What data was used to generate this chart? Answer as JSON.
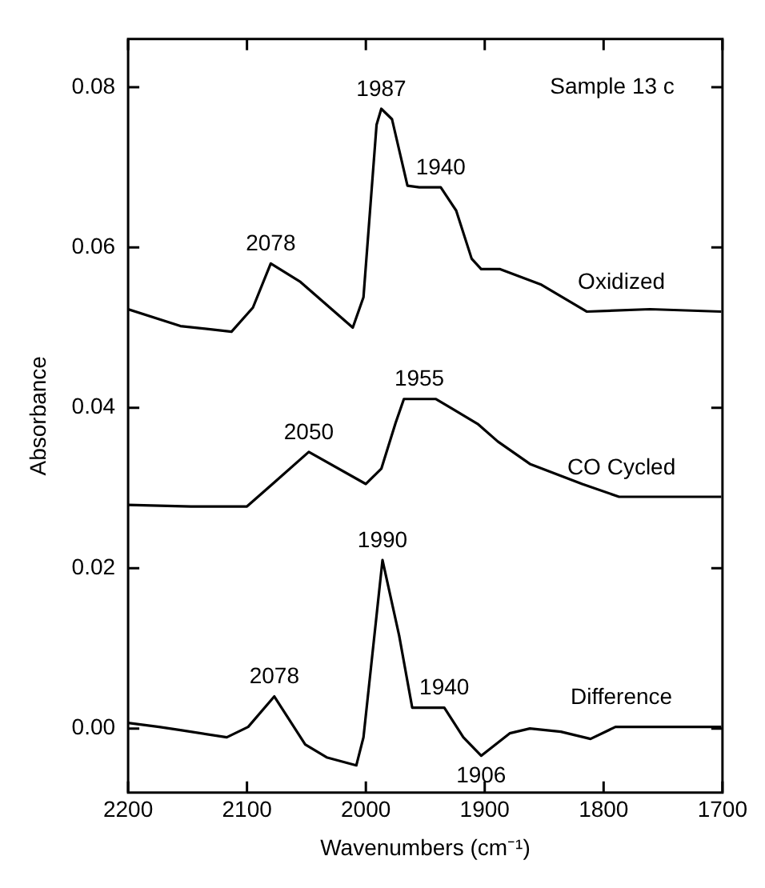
{
  "chart_data": {
    "type": "line",
    "xlabel": "Wavenumbers (cm⁻¹)",
    "ylabel": "Absorbance",
    "xlim": [
      2200,
      1700
    ],
    "xticks": [
      2200,
      2100,
      2000,
      1900,
      1800,
      1700
    ],
    "ylim": [
      -0.008,
      0.086
    ],
    "yticks": [
      {
        "value": 0,
        "label": "0.00"
      },
      {
        "value": 0.02,
        "label": "0.02"
      },
      {
        "value": 0.04,
        "label": "0.04"
      },
      {
        "value": 0.06,
        "label": "0.06"
      },
      {
        "value": 0.08,
        "label": "0.08"
      }
    ],
    "grid": false,
    "legend": false,
    "marker": "none",
    "line_style": "solid",
    "series": [
      {
        "name": "Oxidized",
        "color": "#000000",
        "x": [
          2200,
          2156,
          2113,
          2095,
          2080,
          2055,
          2011,
          2002,
          1991,
          1987,
          1978,
          1965,
          1955,
          1937,
          1924,
          1911,
          1903,
          1887,
          1853,
          1814,
          1761,
          1701
        ],
        "values": [
          0.0523,
          0.0502,
          0.0495,
          0.0525,
          0.058,
          0.0557,
          0.05,
          0.0538,
          0.0753,
          0.0773,
          0.076,
          0.0677,
          0.0675,
          0.0675,
          0.0646,
          0.0586,
          0.0573,
          0.0573,
          0.0554,
          0.052,
          0.0523,
          0.052
        ]
      },
      {
        "name": "CO Cycled",
        "color": "#000000",
        "x": [
          2200,
          2147,
          2100,
          2077,
          2048,
          2000,
          1987,
          1975,
          1968,
          1941,
          1906,
          1889,
          1862,
          1818,
          1787,
          1701
        ],
        "values": [
          0.0279,
          0.0277,
          0.0277,
          0.0307,
          0.0345,
          0.0305,
          0.0324,
          0.0381,
          0.0411,
          0.0411,
          0.038,
          0.0358,
          0.033,
          0.0305,
          0.0289,
          0.0289
        ]
      },
      {
        "name": "Difference",
        "color": "#000000",
        "x": [
          2200,
          2174,
          2156,
          2117,
          2099,
          2077,
          2051,
          2033,
          2008,
          2002,
          1986,
          1972,
          1961,
          1934,
          1918,
          1903,
          1879,
          1862,
          1836,
          1811,
          1790,
          1701
        ],
        "values": [
          0.0007,
          0.0002,
          -0.0002,
          -0.0011,
          0.0002,
          0.004,
          -0.002,
          -0.0036,
          -0.0046,
          -0.0011,
          0.021,
          0.0116,
          0.0026,
          0.0026,
          -0.0011,
          -0.0034,
          -0.0006,
          0.0,
          -0.0004,
          -0.0013,
          0.0002,
          0.0002
        ]
      }
    ],
    "annotations": [
      "Sample 13 c",
      {
        "text": "2078",
        "x": 2080,
        "y": 0.058
      },
      {
        "text": "1987",
        "x": 1987,
        "y": 0.0773
      },
      {
        "text": "1940",
        "x": 1937,
        "y": 0.0675
      },
      {
        "text": "2050",
        "x": 2048,
        "y": 0.0345
      },
      {
        "text": "1955",
        "x": 1955,
        "y": 0.0411
      },
      {
        "text": "2078",
        "x": 2077,
        "y": 0.004
      },
      {
        "text": "1990",
        "x": 1986,
        "y": 0.021
      },
      {
        "text": "1940",
        "x": 1934,
        "y": 0.0026
      },
      {
        "text": "1906",
        "x": 1903,
        "y": -0.0034
      }
    ]
  }
}
